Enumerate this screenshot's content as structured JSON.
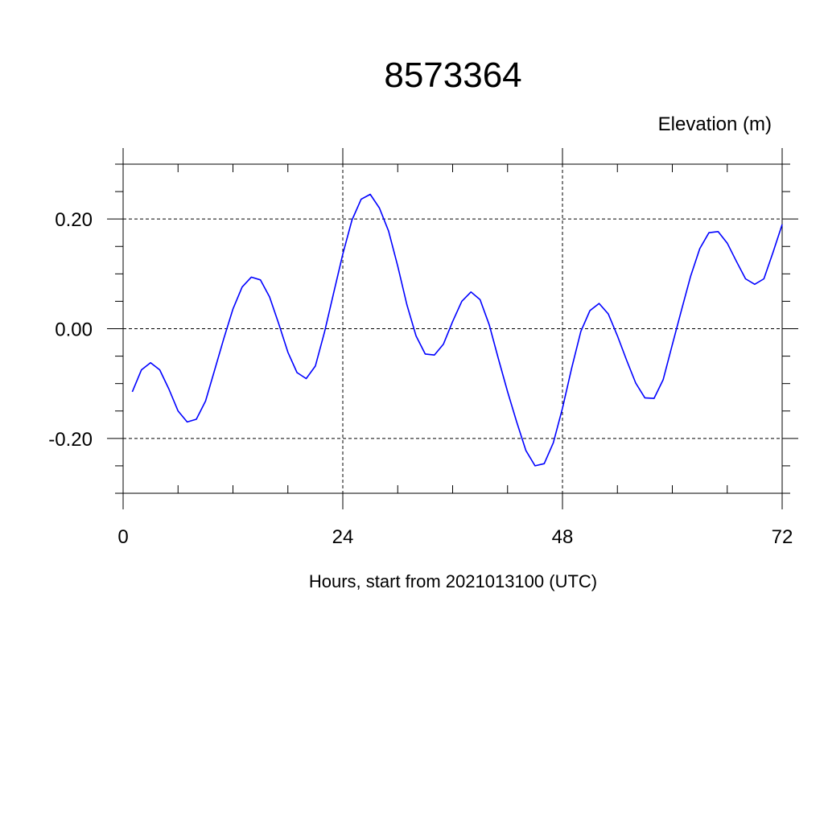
{
  "chart_data": {
    "type": "line",
    "title": "8573364",
    "ylabel_right": "Elevation (m)",
    "xlabel": "Hours, start from 2021013100 (UTC)",
    "xlim": [
      0,
      72
    ],
    "ylim": [
      -0.3,
      0.3
    ],
    "x_ticks": [
      0,
      24,
      48,
      72
    ],
    "x_tick_labels": [
      "0",
      "24",
      "48",
      "72"
    ],
    "y_ticks": [
      -0.2,
      0.0,
      0.2
    ],
    "y_tick_labels": [
      "-0.20",
      "0.00",
      "0.20"
    ],
    "grid": true,
    "line_color": "#0000ff",
    "series": [
      {
        "x": [
          1,
          2,
          3,
          4,
          5,
          6,
          7,
          8,
          9,
          10,
          11,
          12,
          13,
          14,
          15,
          16,
          17,
          18,
          19,
          20,
          21,
          22,
          23,
          24,
          25,
          26,
          27,
          28,
          29,
          30,
          31,
          32,
          33,
          34,
          35,
          36,
          37,
          38,
          39,
          40,
          41,
          42,
          43,
          44,
          45,
          46,
          47,
          48,
          49,
          50,
          51,
          52,
          53,
          54,
          55,
          56,
          57,
          58,
          59,
          60,
          61,
          62,
          63,
          64,
          65,
          66,
          67,
          68,
          69,
          70,
          71,
          72
        ],
        "values": [
          -0.115,
          -0.075,
          -0.062,
          -0.075,
          -0.11,
          -0.15,
          -0.17,
          -0.165,
          -0.132,
          -0.075,
          -0.018,
          0.036,
          0.076,
          0.094,
          0.089,
          0.058,
          0.009,
          -0.043,
          -0.08,
          -0.091,
          -0.068,
          -0.006,
          0.065,
          0.136,
          0.198,
          0.236,
          0.245,
          0.22,
          0.178,
          0.114,
          0.044,
          -0.013,
          -0.046,
          -0.048,
          -0.028,
          0.013,
          0.05,
          0.067,
          0.053,
          0.007,
          -0.055,
          -0.115,
          -0.17,
          -0.222,
          -0.25,
          -0.246,
          -0.208,
          -0.145,
          -0.072,
          -0.005,
          0.033,
          0.046,
          0.027,
          -0.013,
          -0.057,
          -0.099,
          -0.126,
          -0.127,
          -0.093,
          -0.029,
          0.034,
          0.096,
          0.146,
          0.175,
          0.177,
          0.156,
          0.123,
          0.091,
          0.081,
          0.091,
          0.139,
          0.19
        ]
      }
    ]
  }
}
